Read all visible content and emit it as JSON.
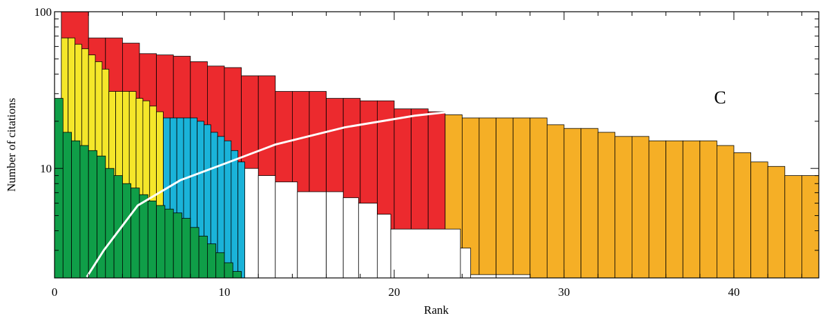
{
  "chart_data": {
    "type": "histogram",
    "xlabel": "Rank",
    "ylabel": "Number of citations",
    "annotation": "C",
    "xlim": [
      0,
      45
    ],
    "ylim": [
      2,
      100
    ],
    "ylog": true,
    "xticks": [
      0,
      10,
      20,
      30,
      40
    ],
    "xminorticks": [
      2,
      4,
      6,
      8,
      12,
      14,
      16,
      18,
      22,
      24,
      26,
      28,
      32,
      34,
      36,
      38,
      42,
      44
    ],
    "yticks": [
      10,
      100
    ],
    "yminorticks": [
      3,
      4,
      5,
      6,
      7,
      8,
      9,
      20,
      30,
      40,
      50,
      60,
      70,
      80,
      90
    ],
    "series": [
      {
        "type": "bar",
        "color": "#ec2a2e",
        "bins": [
          0.4,
          2,
          3,
          4,
          5,
          6,
          7,
          8,
          9,
          10,
          11,
          12,
          13,
          14,
          15,
          16,
          17,
          18,
          19,
          20,
          21,
          22,
          23
        ],
        "values": [
          100,
          68,
          68,
          63,
          54,
          53,
          52,
          48,
          45,
          44,
          39,
          39,
          31,
          31,
          31,
          28,
          28,
          27,
          27,
          24,
          24,
          23
        ]
      },
      {
        "type": "bar",
        "color": "#f5af26",
        "bins": [
          23,
          24,
          25,
          26,
          27,
          28,
          29,
          30,
          31,
          32,
          33,
          34,
          35,
          36,
          37,
          38,
          39,
          40,
          41,
          42,
          43,
          44,
          45
        ],
        "values": [
          22,
          21,
          21,
          21,
          21,
          21,
          19,
          18,
          18,
          17,
          16,
          16,
          15,
          15,
          15,
          15,
          14,
          12.6,
          11,
          10.3,
          9,
          9
        ]
      },
      {
        "type": "bar",
        "color": "#ffffff",
        "bins": [
          11,
          12,
          13,
          14.3,
          16,
          17,
          17.9,
          19,
          19.8,
          23.9,
          24.5,
          28
        ],
        "values": [
          10,
          9,
          8.2,
          7.1,
          7.1,
          6.5,
          6,
          5.1,
          4.1,
          3.1,
          2.1
        ]
      },
      {
        "type": "bar",
        "color": "#1ab3d9",
        "bins": [
          6.4,
          6.8,
          7.2,
          7.6,
          8,
          8.4,
          8.8,
          9.2,
          9.6,
          10,
          10.4,
          10.8,
          11.2
        ],
        "values": [
          21,
          21,
          21,
          21,
          21,
          20,
          19,
          17,
          16,
          15,
          13,
          11
        ]
      },
      {
        "type": "bar",
        "color": "#f5e72a",
        "bins": [
          0.4,
          0.8,
          1.2,
          1.6,
          2,
          2.4,
          2.8,
          3.2,
          3.6,
          4,
          4.4,
          4.8,
          5.2,
          5.6,
          6,
          6.4
        ],
        "values": [
          68,
          68,
          62,
          58,
          53,
          48,
          43,
          31,
          31,
          31,
          31,
          28,
          27,
          25,
          23
        ]
      },
      {
        "type": "bar",
        "color": "#0f9e48",
        "bins": [
          0,
          0.5,
          1,
          1.5,
          2,
          2.5,
          3,
          3.5,
          4,
          4.5,
          5,
          5.5,
          6,
          6.5,
          7,
          7.5,
          8,
          8.5,
          9,
          9.5,
          10,
          10.5,
          11
        ],
        "values": [
          28,
          17,
          15,
          14,
          13,
          12,
          10,
          9,
          8,
          7.5,
          6.8,
          6.2,
          5.8,
          5.5,
          5.2,
          4.8,
          4.2,
          3.7,
          3.3,
          2.9,
          2.5,
          2.2
        ]
      },
      {
        "type": "line",
        "color": "#ffffff",
        "x": [
          1.9,
          2.9,
          4.9,
          7.4,
          10,
          13,
          17.1,
          21.2,
          23.2
        ],
        "values": [
          2.03,
          3,
          5.8,
          8.4,
          10.7,
          14.2,
          18.3,
          21.7,
          22.9
        ]
      }
    ]
  }
}
